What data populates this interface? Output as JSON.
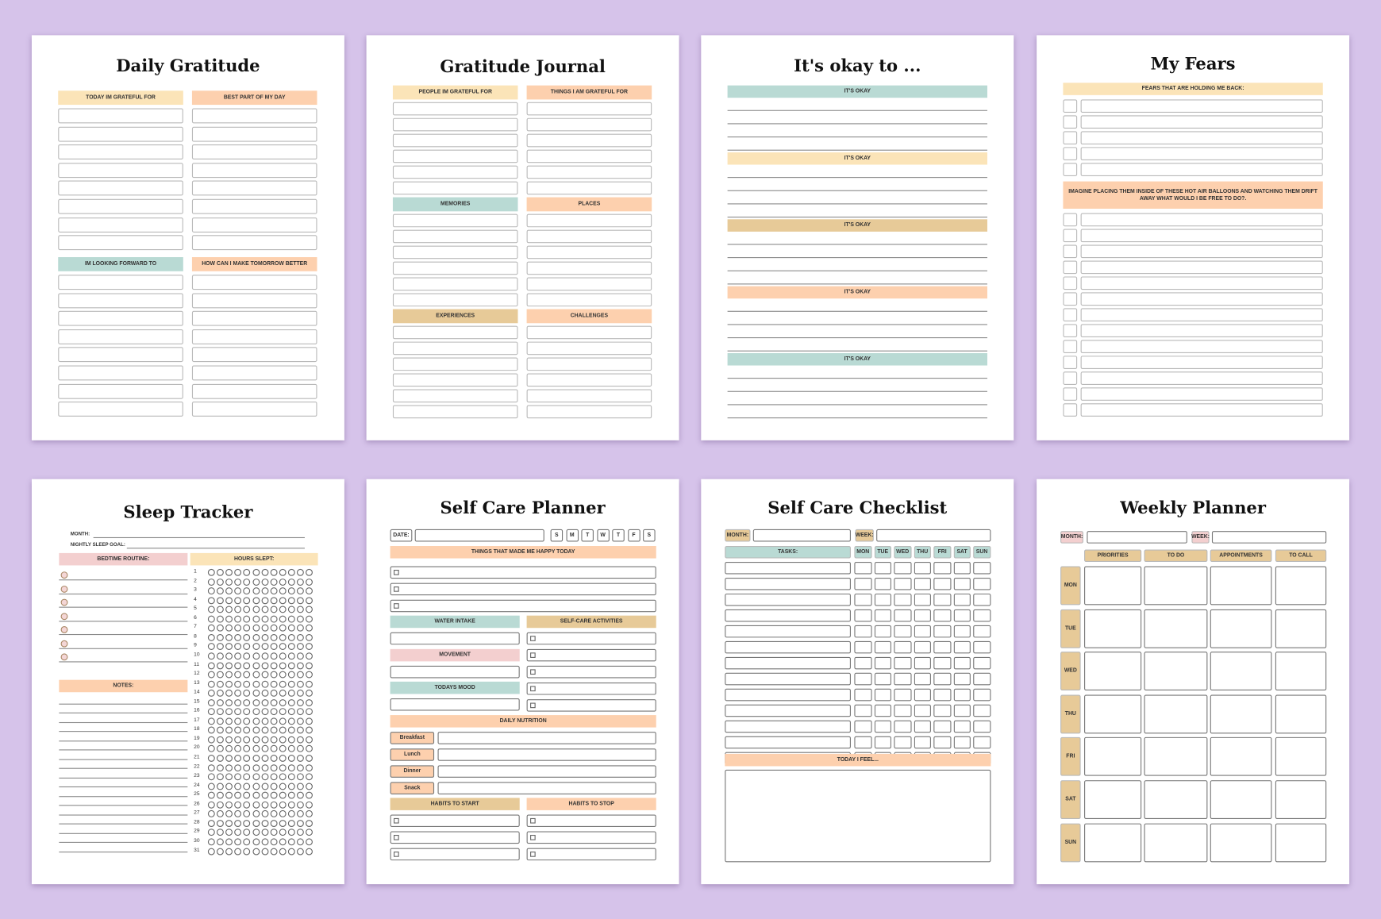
{
  "pages": [
    {
      "title": "Daily Gratitude",
      "sections": [
        "TODAY IM GRATEFUL FOR",
        "BEST PART OF MY DAY",
        "IM LOOKING FORWARD TO",
        "HOW CAN I MAKE TOMORROW BETTER"
      ]
    },
    {
      "title": "Gratitude Journal",
      "sections": [
        "PEOPLE IM GRATEFUL FOR",
        "THINGS I AM GRATEFUL FOR",
        "MEMORIES",
        "PLACES",
        "EXPERIENCES",
        "CHALLENGES"
      ]
    },
    {
      "title": "It's okay to ...",
      "sections": [
        "IT'S OKAY",
        "IT'S OKAY",
        "IT'S OKAY",
        "IT'S OKAY",
        "IT'S OKAY"
      ]
    },
    {
      "title": "My Fears",
      "sections": [
        "FEARS THAT ARE HOLDING ME BACK:",
        "IMAGINE PLACING THEM INSIDE OF THESE HOT AIR BALLOONS AND WATCHING THEM DRIFT AWAY WHAT WOULD I BE FREE TO DO?."
      ]
    },
    {
      "title": "Sleep Tracker",
      "labels": [
        "MONTH:",
        "NIGHTLY SLEEP GOAL:"
      ],
      "sections": [
        "BEDTIME ROUTINE:",
        "HOURS SLEPT:",
        "NOTES:"
      ],
      "days": [
        1,
        2,
        3,
        4,
        5,
        6,
        7,
        8,
        9,
        10,
        11,
        12,
        13,
        14,
        15,
        16,
        17,
        18,
        19,
        20,
        21,
        22,
        23,
        24,
        25,
        26,
        27,
        28,
        29,
        30,
        31
      ]
    },
    {
      "title": "Self Care Planner",
      "date": "DATE:",
      "weekdays": [
        "S",
        "M",
        "T",
        "W",
        "T",
        "F",
        "S"
      ],
      "happy": "THINGS THAT MADE ME HAPPY TODAY",
      "left": [
        "WATER INTAKE",
        "MOVEMENT",
        "TODAYS MOOD"
      ],
      "activities": "SELF-CARE ACTIVITIES",
      "nutrition": "DAILY NUTRITION",
      "meals": [
        "Breakfast",
        "Lunch",
        "Dinner",
        "Snack"
      ],
      "habits": [
        "HABITS TO START",
        "HABITS TO STOP"
      ]
    },
    {
      "title": "Self Care Checklist",
      "labels": [
        "MONTH:",
        "WEEK:"
      ],
      "tasks": "TASKS:",
      "weekdays": [
        "MON",
        "TUE",
        "WED",
        "THU",
        "FRI",
        "SAT",
        "SUN"
      ],
      "feel": "TODAY I FEEL..."
    },
    {
      "title": "Weekly Planner",
      "labels": [
        "MONTH:",
        "WEEK:"
      ],
      "columns": [
        "PRIORITIES",
        "TO DO",
        "APPOINTMENTS",
        "TO CALL"
      ],
      "days": [
        "MON",
        "TUE",
        "WED",
        "THU",
        "FRI",
        "SAT",
        "SUN"
      ]
    }
  ]
}
